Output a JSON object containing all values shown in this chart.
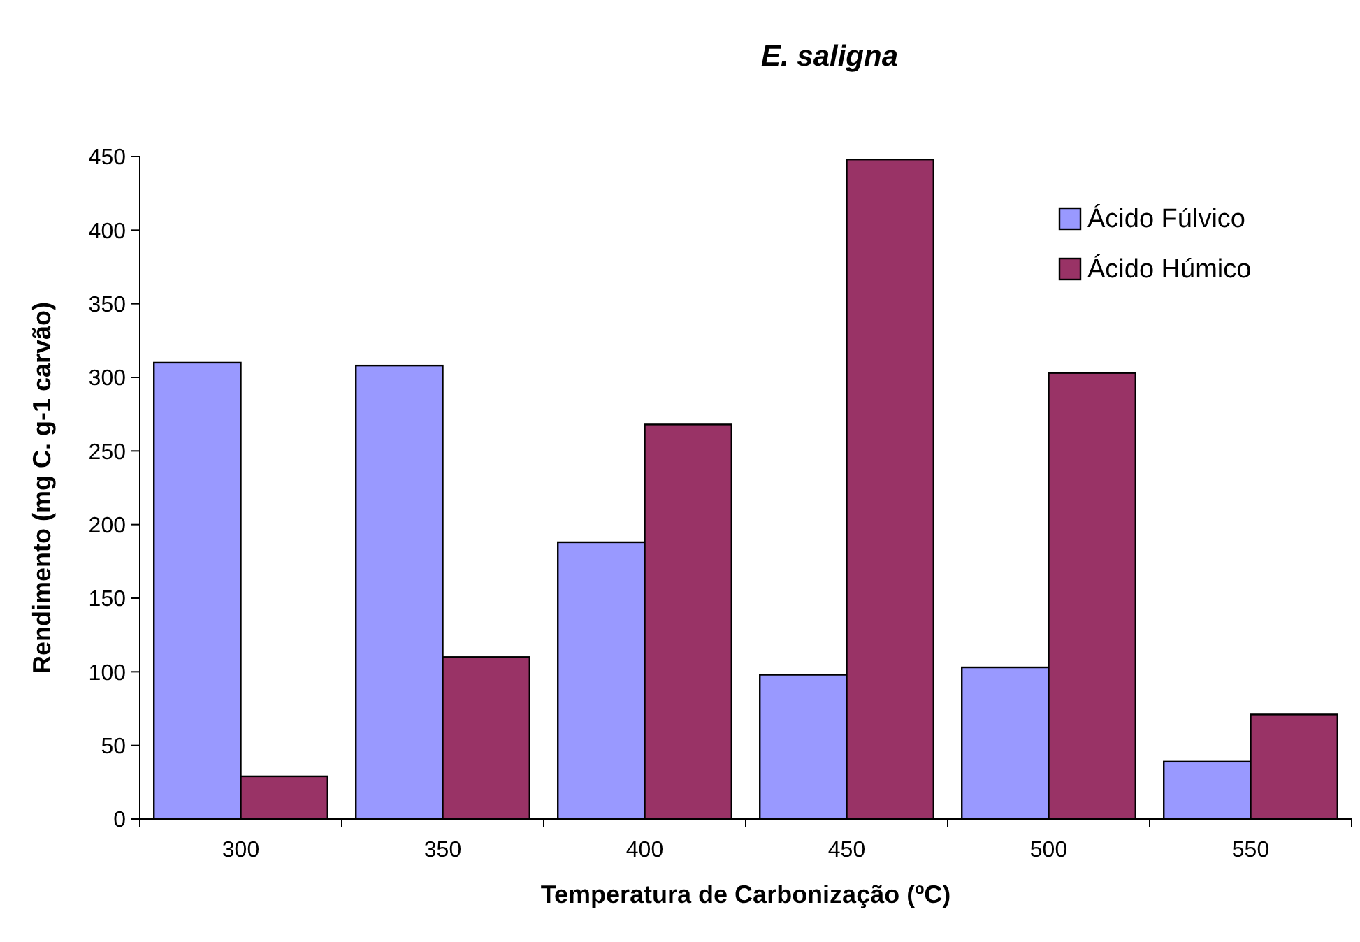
{
  "chart_data": {
    "type": "bar",
    "title": "E. saligna",
    "xlabel": "Temperatura de Carbonização (ºC)",
    "ylabel": "Rendimento (mg C. g-1 carvão)",
    "categories": [
      "300",
      "350",
      "400",
      "450",
      "500",
      "550"
    ],
    "series": [
      {
        "name": "Ácido Fúlvico",
        "color": "#9999ff",
        "values": [
          310,
          308,
          188,
          98,
          103,
          39
        ]
      },
      {
        "name": "Ácido Húmico",
        "color": "#993366",
        "values": [
          29,
          110,
          268,
          448,
          303,
          71
        ]
      }
    ],
    "ylim": [
      0,
      450
    ],
    "yticks": [
      0,
      50,
      100,
      150,
      200,
      250,
      300,
      350,
      400,
      450
    ],
    "legend": "top right"
  }
}
